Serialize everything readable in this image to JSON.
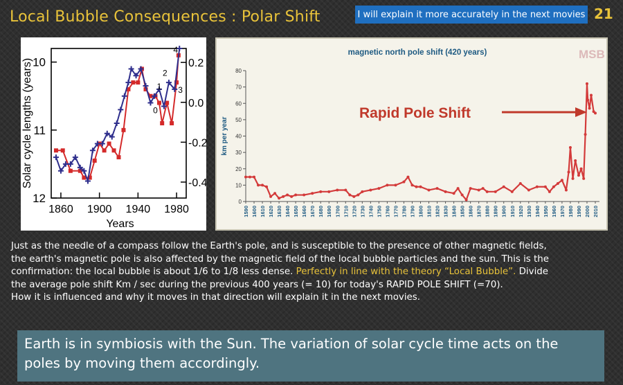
{
  "slide": {
    "title": "Local Bubble Consequences : Polar Shift",
    "banner": "I will explain it more accurately in the next movies",
    "number": "21",
    "para_line1": "Just as the needle of a compass follow the Earth's pole, and is susceptible to the presence of other magnetic fields,",
    "para_line2": "the earth's magnetic pole is also affected by the magnetic field of the local bubble particles and the sun. This is the",
    "para_line3a": "confirmation:  the local bubble is about 1/6 to 1/8 less dense. ",
    "para_line3_hl": "Perfectly in line with the theory “Local Bubble”.",
    "para_line3b": " Divide",
    "para_line4": "the average pole shift Km / sec during the previous 400 years (= 10) for today's RAPID POLE SHIFT (=70).",
    "para_line5": "How it is influenced  and why it moves in that direction  will explain it in the next movies.",
    "callout": "Earth is in symbiosis with the Sun. The variation of solar cycle time acts on the poles by moving them accordingly.",
    "colors": {
      "title": "#e9c33a",
      "banner": "#1f6fc0",
      "callout": "#4f7480",
      "highlight": "#e9c33a"
    }
  },
  "chart_data": [
    {
      "type": "line",
      "ylabel": "Solar cycle lengths (years)",
      "xlabel": "Years",
      "x_ticks": [
        "1860",
        "1900",
        "1940",
        "1980"
      ],
      "xlim": [
        1850,
        1990
      ],
      "y_ticks_left": [
        "10",
        "11",
        "12"
      ],
      "ylim_left": [
        12,
        9.8
      ],
      "y_ticks_right": [
        "0.2",
        "0.0",
        "-0.2",
        "-0.4"
      ],
      "ylim_right": [
        -0.48,
        0.27
      ],
      "annotations": [
        "4",
        "2",
        "1",
        "0",
        "3"
      ],
      "series": [
        {
          "color": "#d42a2a",
          "x": [
            1855,
            1862,
            1870,
            1880,
            1884,
            1890,
            1895,
            1900,
            1905,
            1910,
            1915,
            1920,
            1925,
            1930,
            1935,
            1940,
            1944,
            1948,
            1953,
            1958,
            1962,
            1965,
            1970,
            1975,
            1980,
            1982
          ],
          "y": [
            11.3,
            11.3,
            11.6,
            11.6,
            11.7,
            11.7,
            11.45,
            11.2,
            11.3,
            11.2,
            11.3,
            11.4,
            11.0,
            10.4,
            10.3,
            10.3,
            10.1,
            10.4,
            10.5,
            10.5,
            10.6,
            10.9,
            10.6,
            10.9,
            10.3,
            9.9
          ]
        },
        {
          "color": "#2e2e8c",
          "x": [
            1855,
            1860,
            1865,
            1870,
            1875,
            1880,
            1884,
            1888,
            1893,
            1898,
            1903,
            1908,
            1913,
            1918,
            1922,
            1926,
            1930,
            1933,
            1938,
            1943,
            1948,
            1953,
            1957,
            1962,
            1967,
            1972,
            1978,
            1983
          ],
          "y": [
            11.4,
            11.6,
            11.5,
            11.5,
            11.4,
            11.55,
            11.6,
            11.75,
            11.3,
            11.2,
            11.2,
            11.05,
            11.1,
            10.9,
            10.7,
            10.5,
            10.3,
            10.1,
            10.2,
            10.1,
            10.35,
            10.6,
            10.5,
            10.4,
            10.65,
            10.3,
            10.4,
            9.8
          ]
        }
      ]
    },
    {
      "type": "line",
      "title": "magnetic north pole shift (420 years)",
      "ylabel": "km per year",
      "annotation": "Rapid Pole Shift",
      "ylim": [
        0,
        80
      ],
      "y_ticks": [
        0,
        10,
        20,
        30,
        40,
        50,
        60,
        70,
        80
      ],
      "x_ticks": [
        1590,
        1600,
        1610,
        1620,
        1630,
        1640,
        1650,
        1660,
        1670,
        1680,
        1690,
        1700,
        1710,
        1720,
        1730,
        1740,
        1750,
        1760,
        1770,
        1780,
        1790,
        1800,
        1810,
        1820,
        1830,
        1840,
        1850,
        1860,
        1870,
        1880,
        1890,
        1900,
        1910,
        1920,
        1930,
        1940,
        1950,
        1960,
        1970,
        1980,
        1990,
        2000,
        2010
      ],
      "logo": "MSB",
      "series": [
        {
          "color": "#d33a3a",
          "x": [
            1590,
            1595,
            1600,
            1605,
            1610,
            1615,
            1620,
            1625,
            1630,
            1635,
            1640,
            1645,
            1650,
            1660,
            1670,
            1680,
            1690,
            1700,
            1710,
            1715,
            1720,
            1725,
            1730,
            1740,
            1750,
            1760,
            1770,
            1780,
            1785,
            1790,
            1795,
            1800,
            1810,
            1820,
            1830,
            1840,
            1845,
            1850,
            1855,
            1860,
            1870,
            1875,
            1880,
            1890,
            1900,
            1910,
            1920,
            1930,
            1940,
            1950,
            1955,
            1960,
            1965,
            1970,
            1975,
            1978,
            1980,
            1983,
            1986,
            1990,
            1993,
            1996,
            1998,
            2000,
            2001,
            2003,
            2005,
            2008,
            2010
          ],
          "y": [
            15,
            15,
            15,
            10,
            10,
            9,
            3,
            5,
            2,
            3,
            4,
            3,
            4,
            4,
            5,
            6,
            6,
            7,
            7,
            4,
            3,
            4,
            6,
            7,
            8,
            10,
            10,
            12,
            15,
            10,
            9,
            9,
            7,
            8,
            6,
            5,
            8,
            4,
            1,
            8,
            7,
            8,
            6,
            6,
            9,
            6,
            11,
            7,
            9,
            9,
            6,
            9,
            11,
            13,
            7,
            18,
            33,
            14,
            25,
            16,
            20,
            14,
            41,
            72,
            62,
            57,
            65,
            55,
            54
          ]
        }
      ]
    }
  ]
}
